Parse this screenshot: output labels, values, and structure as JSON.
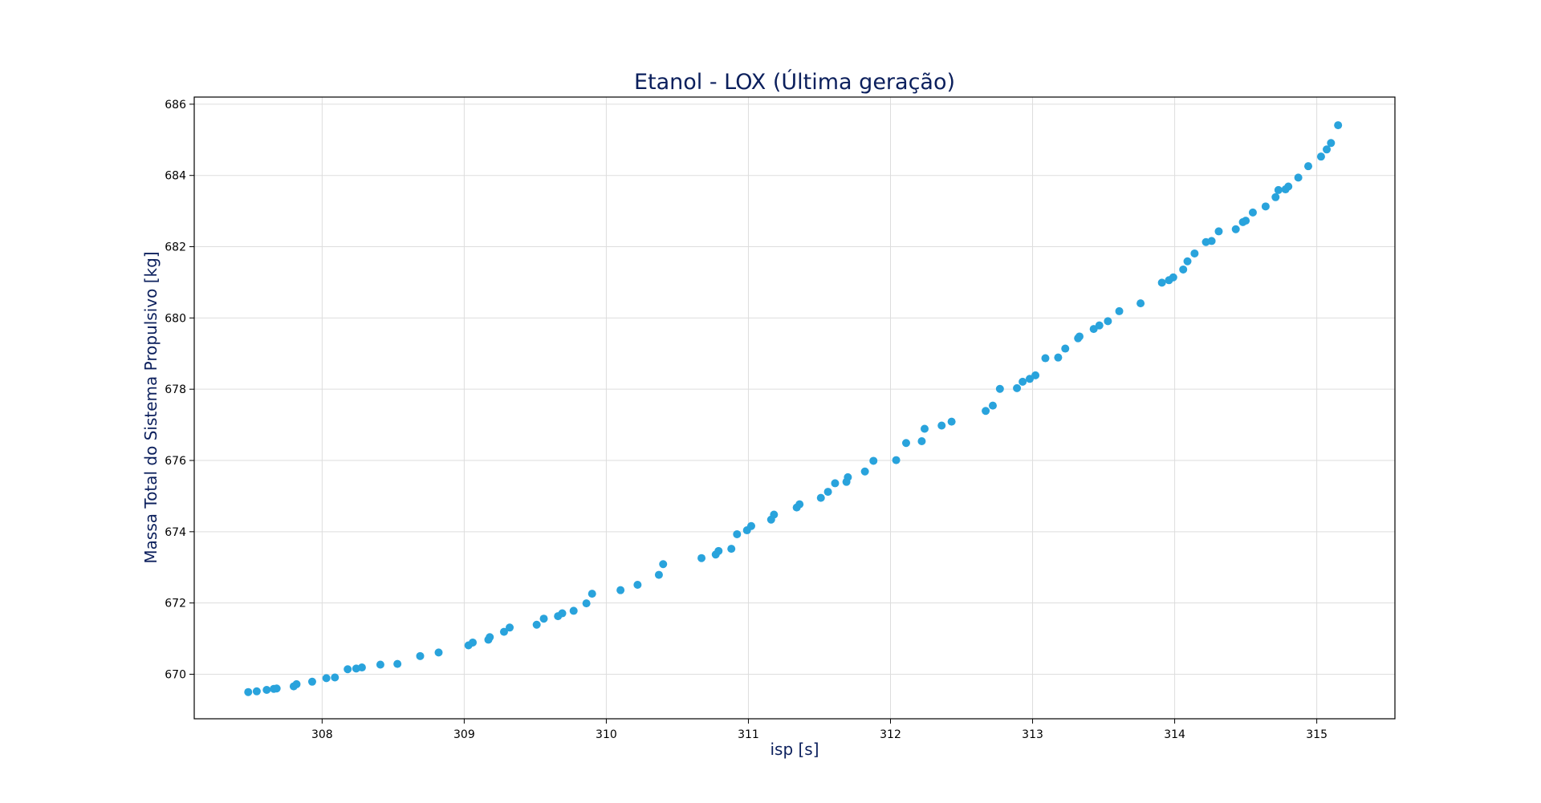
{
  "chart_data": {
    "type": "scatter",
    "title": "Etanol - LOX (Última geração)",
    "xlabel": "isp [s]",
    "ylabel": "Massa Total do Sistema Propulsivo [kg]",
    "xlim": [
      307.1,
      315.55
    ],
    "ylim": [
      668.75,
      686.2
    ],
    "xticks": [
      308,
      309,
      310,
      311,
      312,
      313,
      314,
      315
    ],
    "yticks": [
      670,
      672,
      674,
      676,
      678,
      680,
      682,
      684,
      686
    ],
    "grid": true,
    "colors": {
      "point": "#29a3dc",
      "title": "#0b1f5c",
      "axis_label": "#0b1f5c",
      "grid": "#dddddd"
    },
    "points": [
      [
        307.48,
        669.5
      ],
      [
        307.54,
        669.52
      ],
      [
        307.61,
        669.56
      ],
      [
        307.66,
        669.59
      ],
      [
        307.68,
        669.6
      ],
      [
        307.8,
        669.66
      ],
      [
        307.82,
        669.72
      ],
      [
        307.93,
        669.79
      ],
      [
        308.03,
        669.89
      ],
      [
        308.09,
        669.91
      ],
      [
        308.18,
        670.14
      ],
      [
        308.24,
        670.16
      ],
      [
        308.28,
        670.19
      ],
      [
        308.41,
        670.27
      ],
      [
        308.53,
        670.29
      ],
      [
        308.69,
        670.51
      ],
      [
        308.82,
        670.61
      ],
      [
        309.03,
        670.81
      ],
      [
        309.06,
        670.89
      ],
      [
        309.17,
        670.97
      ],
      [
        309.18,
        671.04
      ],
      [
        309.28,
        671.19
      ],
      [
        309.32,
        671.31
      ],
      [
        309.51,
        671.39
      ],
      [
        309.56,
        671.56
      ],
      [
        309.66,
        671.63
      ],
      [
        309.69,
        671.71
      ],
      [
        309.77,
        671.78
      ],
      [
        309.86,
        671.99
      ],
      [
        309.9,
        672.26
      ],
      [
        310.1,
        672.36
      ],
      [
        310.22,
        672.51
      ],
      [
        310.37,
        672.79
      ],
      [
        310.4,
        673.09
      ],
      [
        310.67,
        673.26
      ],
      [
        310.77,
        673.36
      ],
      [
        310.79,
        673.46
      ],
      [
        310.88,
        673.52
      ],
      [
        310.92,
        673.93
      ],
      [
        310.99,
        674.04
      ],
      [
        311.02,
        674.16
      ],
      [
        311.16,
        674.34
      ],
      [
        311.18,
        674.48
      ],
      [
        311.34,
        674.68
      ],
      [
        311.36,
        674.77
      ],
      [
        311.51,
        674.95
      ],
      [
        311.56,
        675.12
      ],
      [
        311.61,
        675.36
      ],
      [
        311.69,
        675.4
      ],
      [
        311.7,
        675.53
      ],
      [
        311.82,
        675.69
      ],
      [
        311.88,
        675.99
      ],
      [
        312.04,
        676.01
      ],
      [
        312.11,
        676.49
      ],
      [
        312.22,
        676.54
      ],
      [
        312.24,
        676.89
      ],
      [
        312.36,
        676.98
      ],
      [
        312.43,
        677.09
      ],
      [
        312.67,
        677.39
      ],
      [
        312.72,
        677.54
      ],
      [
        312.77,
        678.01
      ],
      [
        312.89,
        678.03
      ],
      [
        312.93,
        678.21
      ],
      [
        312.98,
        678.29
      ],
      [
        313.02,
        678.39
      ],
      [
        313.09,
        678.87
      ],
      [
        313.18,
        678.89
      ],
      [
        313.23,
        679.14
      ],
      [
        313.32,
        679.43
      ],
      [
        313.33,
        679.48
      ],
      [
        313.43,
        679.69
      ],
      [
        313.47,
        679.79
      ],
      [
        313.53,
        679.91
      ],
      [
        313.61,
        680.19
      ],
      [
        313.76,
        680.41
      ],
      [
        313.91,
        680.99
      ],
      [
        313.96,
        681.06
      ],
      [
        313.99,
        681.14
      ],
      [
        314.06,
        681.36
      ],
      [
        314.09,
        681.59
      ],
      [
        314.14,
        681.81
      ],
      [
        314.22,
        682.13
      ],
      [
        314.26,
        682.16
      ],
      [
        314.31,
        682.43
      ],
      [
        314.43,
        682.49
      ],
      [
        314.48,
        682.69
      ],
      [
        314.5,
        682.73
      ],
      [
        314.55,
        682.96
      ],
      [
        314.64,
        683.13
      ],
      [
        314.71,
        683.39
      ],
      [
        314.73,
        683.59
      ],
      [
        314.78,
        683.61
      ],
      [
        314.8,
        683.69
      ],
      [
        314.87,
        683.94
      ],
      [
        314.94,
        684.26
      ],
      [
        315.03,
        684.53
      ],
      [
        315.07,
        684.73
      ],
      [
        315.1,
        684.91
      ],
      [
        315.15,
        685.41
      ]
    ]
  }
}
